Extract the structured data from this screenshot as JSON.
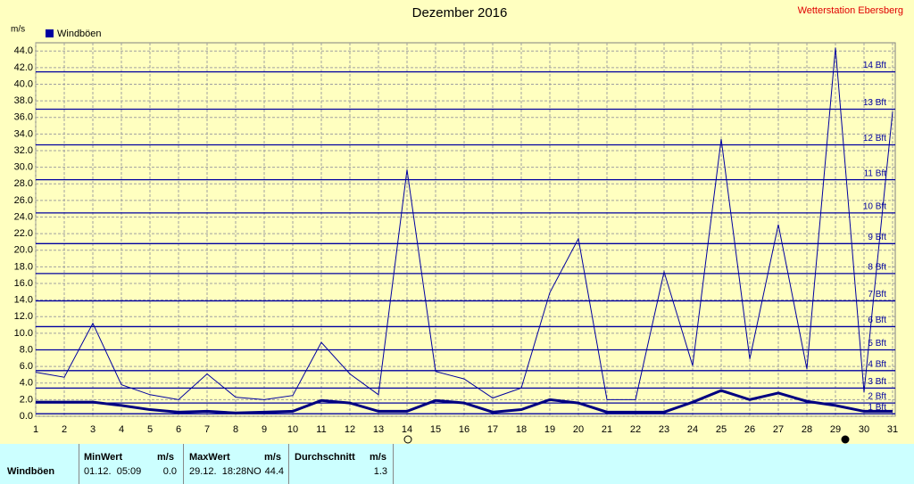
{
  "chart_data": {
    "type": "line",
    "title": "Dezember 2016",
    "station": "Wetterstation Ebersberg",
    "y_label": "m/s",
    "x": [
      1,
      2,
      3,
      4,
      5,
      6,
      7,
      8,
      9,
      10,
      11,
      12,
      13,
      14,
      15,
      16,
      17,
      18,
      19,
      20,
      21,
      22,
      23,
      24,
      25,
      26,
      27,
      28,
      29,
      30,
      31
    ],
    "xlim": [
      1,
      31
    ],
    "xticks": [
      1,
      2,
      3,
      4,
      5,
      6,
      7,
      8,
      9,
      10,
      11,
      12,
      13,
      14,
      15,
      16,
      17,
      18,
      19,
      20,
      21,
      22,
      23,
      24,
      25,
      26,
      27,
      28,
      29,
      30,
      31
    ],
    "ylim": [
      0,
      45
    ],
    "yticks": [
      {
        "value": 0,
        "label": "0.0"
      },
      {
        "value": 2,
        "label": "2.0"
      },
      {
        "value": 4,
        "label": "4.0"
      },
      {
        "value": 6,
        "label": "6.0"
      },
      {
        "value": 8,
        "label": "8.0"
      },
      {
        "value": 10,
        "label": "10.0"
      },
      {
        "value": 12,
        "label": "12.0"
      },
      {
        "value": 14,
        "label": "14.0"
      },
      {
        "value": 16,
        "label": "16.0"
      },
      {
        "value": 18,
        "label": "18.0"
      },
      {
        "value": 20,
        "label": "20.0"
      },
      {
        "value": 22,
        "label": "22.0"
      },
      {
        "value": 24,
        "label": "24.0"
      },
      {
        "value": 26,
        "label": "26.0"
      },
      {
        "value": 28,
        "label": "28.0"
      },
      {
        "value": 30,
        "label": "30.0"
      },
      {
        "value": 32,
        "label": "32.0"
      },
      {
        "value": 34,
        "label": "34.0"
      },
      {
        "value": 36,
        "label": "36.0"
      },
      {
        "value": 38,
        "label": "38.0"
      },
      {
        "value": 40,
        "label": "40.0"
      },
      {
        "value": 42,
        "label": "42.0"
      },
      {
        "value": 44,
        "label": "44.0"
      }
    ],
    "grid": true,
    "beaufort": [
      {
        "value": 0.3,
        "label": "1 Bft"
      },
      {
        "value": 1.6,
        "label": "2 Bft"
      },
      {
        "value": 3.4,
        "label": "3 Bft"
      },
      {
        "value": 5.5,
        "label": "4 Bft"
      },
      {
        "value": 8.0,
        "label": "5 Bft"
      },
      {
        "value": 10.8,
        "label": "6 Bft"
      },
      {
        "value": 13.9,
        "label": "7 Bft"
      },
      {
        "value": 17.2,
        "label": "8 Bft"
      },
      {
        "value": 20.8,
        "label": "9 Bft"
      },
      {
        "value": 24.5,
        "label": "10 Bft"
      },
      {
        "value": 28.5,
        "label": "11 Bft"
      },
      {
        "value": 32.7,
        "label": "12 Bft"
      },
      {
        "value": 37.0,
        "label": "13 Bft"
      },
      {
        "value": 41.5,
        "label": "14 Bft"
      }
    ],
    "beaufort_color": "#0000a0",
    "series": [
      {
        "name": "Windböen",
        "color": "#0000a0",
        "width": 1,
        "values": [
          5.3,
          4.7,
          11.2,
          3.8,
          2.6,
          2.0,
          5.1,
          2.3,
          2.0,
          2.5,
          8.9,
          5.1,
          2.6,
          29.7,
          5.4,
          4.5,
          2.2,
          3.4,
          14.9,
          21.4,
          2.0,
          2.0,
          17.4,
          6.1,
          33.4,
          6.9,
          23.1,
          5.7,
          44.4,
          2.9,
          36.7
        ]
      },
      {
        "color": "#000080",
        "width": 3,
        "values": [
          1.7,
          1.7,
          1.7,
          1.3,
          0.8,
          0.5,
          0.6,
          0.4,
          0.5,
          0.6,
          1.9,
          1.6,
          0.6,
          0.6,
          1.9,
          1.6,
          0.5,
          0.8,
          2.0,
          1.6,
          0.5,
          0.5,
          0.5,
          1.7,
          3.1,
          2.0,
          2.8,
          1.8,
          1.3,
          0.6,
          0.6
        ]
      }
    ]
  },
  "table": {
    "headers": [
      [
        "MinWert",
        "m/s"
      ],
      [
        "MaxWert",
        "m/s"
      ],
      [
        "Durchschnitt",
        "m/s"
      ]
    ],
    "rows": [
      [
        "Windböen",
        "01.12.  05:09",
        "0.0",
        "29.12.  18:28NO",
        "44.4",
        "1.3"
      ]
    ]
  }
}
